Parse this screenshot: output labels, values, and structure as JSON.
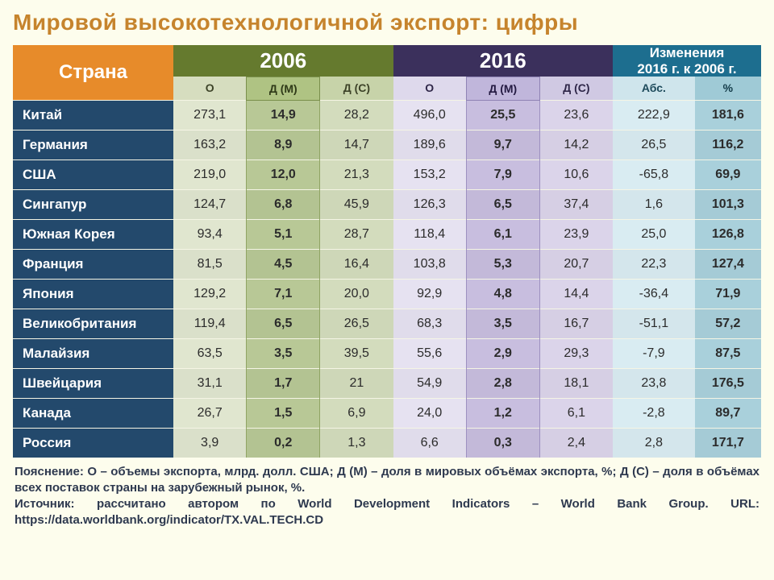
{
  "title_part1": "Мировой высокотехнологичной экспорт: ",
  "title_part2": "цифры",
  "header": {
    "country": "Страна",
    "year_a": "2006",
    "year_b": "2016",
    "change_line1": "Изменения",
    "change_line2": "2016 г. к 2006 г.",
    "sub": {
      "o": "О",
      "dm": "Д (М)",
      "dc": "Д (С)",
      "abs": "Абс.",
      "pct": "%"
    }
  },
  "colors": {
    "page_bg": "#fdfded",
    "title": "#c6842d",
    "hdr_country": "#e78b2a",
    "hdr_2006": "#657a2e",
    "hdr_2016": "#3b305c",
    "hdr_chg": "#1d6e8f",
    "rowhdr": "#23496c",
    "col_2006": [
      "#e0e6cf",
      "#b8c896",
      "#d3dcbd"
    ],
    "col_2016": [
      "#e6e2f1",
      "#c8bedf",
      "#dbd4ea"
    ],
    "col_abs": "#d9ecf2",
    "col_pct": "#a9d0db"
  },
  "type": "table",
  "rows": [
    {
      "name": "Китай",
      "o06": "273,1",
      "dm06": "14,9",
      "dc06": "28,2",
      "o16": "496,0",
      "dm16": "25,5",
      "dc16": "23,6",
      "abs": "222,9",
      "pct": "181,6"
    },
    {
      "name": "Германия",
      "o06": "163,2",
      "dm06": "8,9",
      "dc06": "14,7",
      "o16": "189,6",
      "dm16": "9,7",
      "dc16": "14,2",
      "abs": "26,5",
      "pct": "116,2"
    },
    {
      "name": "США",
      "o06": "219,0",
      "dm06": "12,0",
      "dc06": "21,3",
      "o16": "153,2",
      "dm16": "7,9",
      "dc16": "10,6",
      "abs": "-65,8",
      "pct": "69,9"
    },
    {
      "name": "Сингапур",
      "o06": "124,7",
      "dm06": "6,8",
      "dc06": "45,9",
      "o16": "126,3",
      "dm16": "6,5",
      "dc16": "37,4",
      "abs": "1,6",
      "pct": "101,3"
    },
    {
      "name": "Южная Корея",
      "o06": "93,4",
      "dm06": "5,1",
      "dc06": "28,7",
      "o16": "118,4",
      "dm16": "6,1",
      "dc16": "23,9",
      "abs": "25,0",
      "pct": "126,8"
    },
    {
      "name": "Франция",
      "o06": "81,5",
      "dm06": "4,5",
      "dc06": "16,4",
      "o16": "103,8",
      "dm16": "5,3",
      "dc16": "20,7",
      "abs": "22,3",
      "pct": "127,4"
    },
    {
      "name": "Япония",
      "o06": "129,2",
      "dm06": "7,1",
      "dc06": "20,0",
      "o16": "92,9",
      "dm16": "4,8",
      "dc16": "14,4",
      "abs": "-36,4",
      "pct": "71,9"
    },
    {
      "name": "Великобритания",
      "o06": "119,4",
      "dm06": "6,5",
      "dc06": "26,5",
      "o16": "68,3",
      "dm16": "3,5",
      "dc16": "16,7",
      "abs": "-51,1",
      "pct": "57,2"
    },
    {
      "name": "Малайзия",
      "o06": "63,5",
      "dm06": "3,5",
      "dc06": "39,5",
      "o16": "55,6",
      "dm16": "2,9",
      "dc16": "29,3",
      "abs": "-7,9",
      "pct": "87,5"
    },
    {
      "name": "Швейцария",
      "o06": "31,1",
      "dm06": "1,7",
      "dc06": "21",
      "o16": "54,9",
      "dm16": "2,8",
      "dc16": "18,1",
      "abs": "23,8",
      "pct": "176,5"
    },
    {
      "name": "Канада",
      "o06": "26,7",
      "dm06": "1,5",
      "dc06": "6,9",
      "o16": "24,0",
      "dm16": "1,2",
      "dc16": "6,1",
      "abs": "-2,8",
      "pct": "89,7"
    },
    {
      "name": "Россия",
      "o06": "3,9",
      "dm06": "0,2",
      "dc06": "1,3",
      "o16": "6,6",
      "dm16": "0,3",
      "dc16": "2,4",
      "abs": "2,8",
      "pct": "171,7"
    }
  ],
  "footer": "Пояснение: О – объемы экспорта, млрд. долл. США; Д (М) – доля в мировых объёмах экспорта, %; Д (С) – доля в объёмах всех поставок страны на зарубежный рынок, %.\nИсточник: рассчитано автором по World Development Indicators – World Bank Group. URL: https://data.worldbank.org/indicator/TX.VAL.TECH.CD"
}
